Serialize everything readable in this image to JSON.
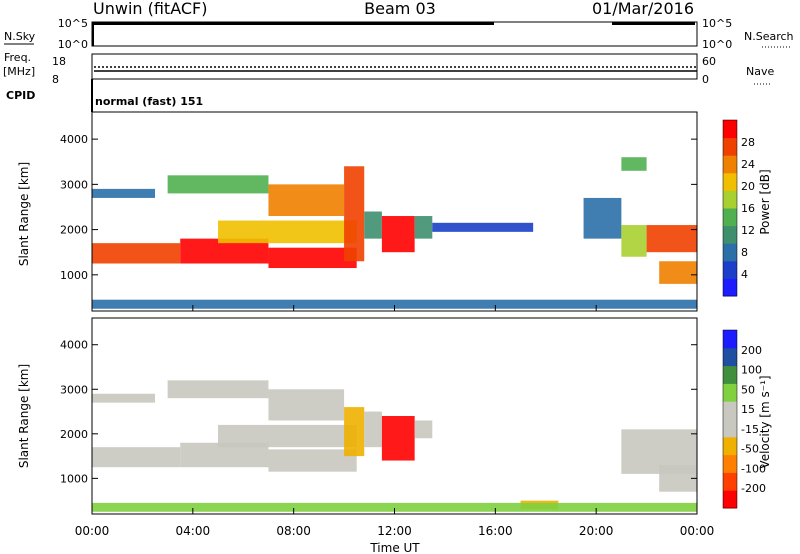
{
  "header": {
    "station": "Unwin (fitACF)",
    "beam": "Beam 03",
    "date": "01/Mar/2016"
  },
  "top_panels": {
    "nsky_label": "N.Sky",
    "nsky_ticks": [
      "10^5",
      "10^0"
    ],
    "nsearch_label": "N.Search",
    "nsearch_ticks": [
      "10^5",
      "10^0"
    ],
    "freq_label_1": "Freq.",
    "freq_label_2": "[MHz]",
    "freq_ticks": [
      "18",
      "8"
    ],
    "nave_label": "Nave",
    "nave_ticks": [
      "60",
      "0"
    ],
    "cpid_label": "CPID",
    "cpid_text": "normal (fast) 151"
  },
  "colors": {
    "power_scale": [
      "#1c1cff",
      "#1b3fc8",
      "#2b6fa8",
      "#3f8f6f",
      "#50b050",
      "#a8d030",
      "#f0c000",
      "#f08000",
      "#f04000",
      "#ff0000"
    ],
    "velocity_scale": [
      "#ff0000",
      "#ff4000",
      "#ff8000",
      "#f0b000",
      "#c8c8c0",
      "#c8c8c0",
      "#80d040",
      "#3f8f3f",
      "#1f4fa0",
      "#1c1cff"
    ],
    "velocity_gray": "#c8c8c0"
  },
  "chart_data": [
    {
      "type": "heatmap",
      "name_id": "power",
      "ylabel": "Slant Range [km]",
      "yticks": [
        1000,
        2000,
        3000,
        4000
      ],
      "ylim": [
        200,
        4600
      ],
      "xlim": [
        0,
        24
      ],
      "colorbar_label": "Power [dB]",
      "colorbar_ticks": [
        "28",
        "24",
        "20",
        "16",
        "12",
        "8",
        "4"
      ],
      "regions": [
        {
          "x": [
            0,
            3.5
          ],
          "range": [
            1250,
            1700
          ],
          "level": 8
        },
        {
          "x": [
            3.5,
            7
          ],
          "range": [
            1250,
            1800
          ],
          "level": 9
        },
        {
          "x": [
            7,
            10.5
          ],
          "range": [
            1150,
            1600
          ],
          "level": 9
        },
        {
          "x": [
            5,
            10.5
          ],
          "range": [
            1700,
            2200
          ],
          "level": 6
        },
        {
          "x": [
            0,
            2.5
          ],
          "range": [
            2700,
            2900
          ],
          "level": 2
        },
        {
          "x": [
            3,
            7
          ],
          "range": [
            2800,
            3200
          ],
          "level": 4
        },
        {
          "x": [
            7,
            10
          ],
          "range": [
            2300,
            3000
          ],
          "level": 7
        },
        {
          "x": [
            10,
            10.8
          ],
          "range": [
            1300,
            3400
          ],
          "level": 8
        },
        {
          "x": [
            10.8,
            11.5
          ],
          "range": [
            1800,
            2400
          ],
          "level": 3
        },
        {
          "x": [
            11.5,
            12.8
          ],
          "range": [
            1500,
            2300
          ],
          "level": 9
        },
        {
          "x": [
            12.8,
            13.5
          ],
          "range": [
            1800,
            2300
          ],
          "level": 3
        },
        {
          "x": [
            13.5,
            17.5
          ],
          "range": [
            1950,
            2150
          ],
          "level": 1
        },
        {
          "x": [
            19.5,
            21
          ],
          "range": [
            1800,
            2700
          ],
          "level": 2
        },
        {
          "x": [
            21,
            22
          ],
          "range": [
            1400,
            2100
          ],
          "level": 5
        },
        {
          "x": [
            22,
            24
          ],
          "range": [
            1500,
            2100
          ],
          "level": 8
        },
        {
          "x": [
            22.5,
            24
          ],
          "range": [
            800,
            1300
          ],
          "level": 7
        },
        {
          "x": [
            21,
            22
          ],
          "range": [
            3300,
            3600
          ],
          "level": 4
        },
        {
          "x": [
            0,
            24
          ],
          "range": [
            250,
            450
          ],
          "level": 2
        }
      ]
    },
    {
      "type": "heatmap",
      "name_id": "velocity",
      "ylabel": "Slant Range [km]",
      "yticks": [
        1000,
        2000,
        3000,
        4000
      ],
      "ylim": [
        200,
        4600
      ],
      "xlim": [
        0,
        24
      ],
      "xticks": [
        "00:00",
        "04:00",
        "08:00",
        "12:00",
        "16:00",
        "20:00",
        "00:00"
      ],
      "xlabel": "Time UT",
      "colorbar_label": "Velocity [m s⁻¹]",
      "colorbar_ticks": [
        "200",
        "100",
        "50",
        "15",
        "-15",
        "-50",
        "-100",
        "-200"
      ],
      "regions": [
        {
          "x": [
            0,
            3.5
          ],
          "range": [
            1250,
            1700
          ],
          "level": 4
        },
        {
          "x": [
            3.5,
            7
          ],
          "range": [
            1250,
            1800
          ],
          "level": 4
        },
        {
          "x": [
            7,
            10.5
          ],
          "range": [
            1150,
            1650
          ],
          "level": 4
        },
        {
          "x": [
            5,
            10.5
          ],
          "range": [
            1700,
            2200
          ],
          "level": 4
        },
        {
          "x": [
            0,
            2.5
          ],
          "range": [
            2700,
            2900
          ],
          "level": 4
        },
        {
          "x": [
            3,
            7
          ],
          "range": [
            2800,
            3200
          ],
          "level": 4
        },
        {
          "x": [
            7,
            10
          ],
          "range": [
            2300,
            3000
          ],
          "level": 4
        },
        {
          "x": [
            10,
            10.8
          ],
          "range": [
            1500,
            2600
          ],
          "level": 3
        },
        {
          "x": [
            10.8,
            11.5
          ],
          "range": [
            1700,
            2500
          ],
          "level": 4
        },
        {
          "x": [
            11.5,
            12.8
          ],
          "range": [
            1400,
            2400
          ],
          "level": 0
        },
        {
          "x": [
            12.8,
            13.5
          ],
          "range": [
            1900,
            2300
          ],
          "level": 4
        },
        {
          "x": [
            21,
            24
          ],
          "range": [
            1100,
            2100
          ],
          "level": 4
        },
        {
          "x": [
            22.5,
            24
          ],
          "range": [
            700,
            1300
          ],
          "level": 4
        },
        {
          "x": [
            17,
            18.5
          ],
          "range": [
            300,
            500
          ],
          "level": 3
        },
        {
          "x": [
            0,
            24
          ],
          "range": [
            250,
            450
          ],
          "level": 6
        }
      ]
    }
  ]
}
